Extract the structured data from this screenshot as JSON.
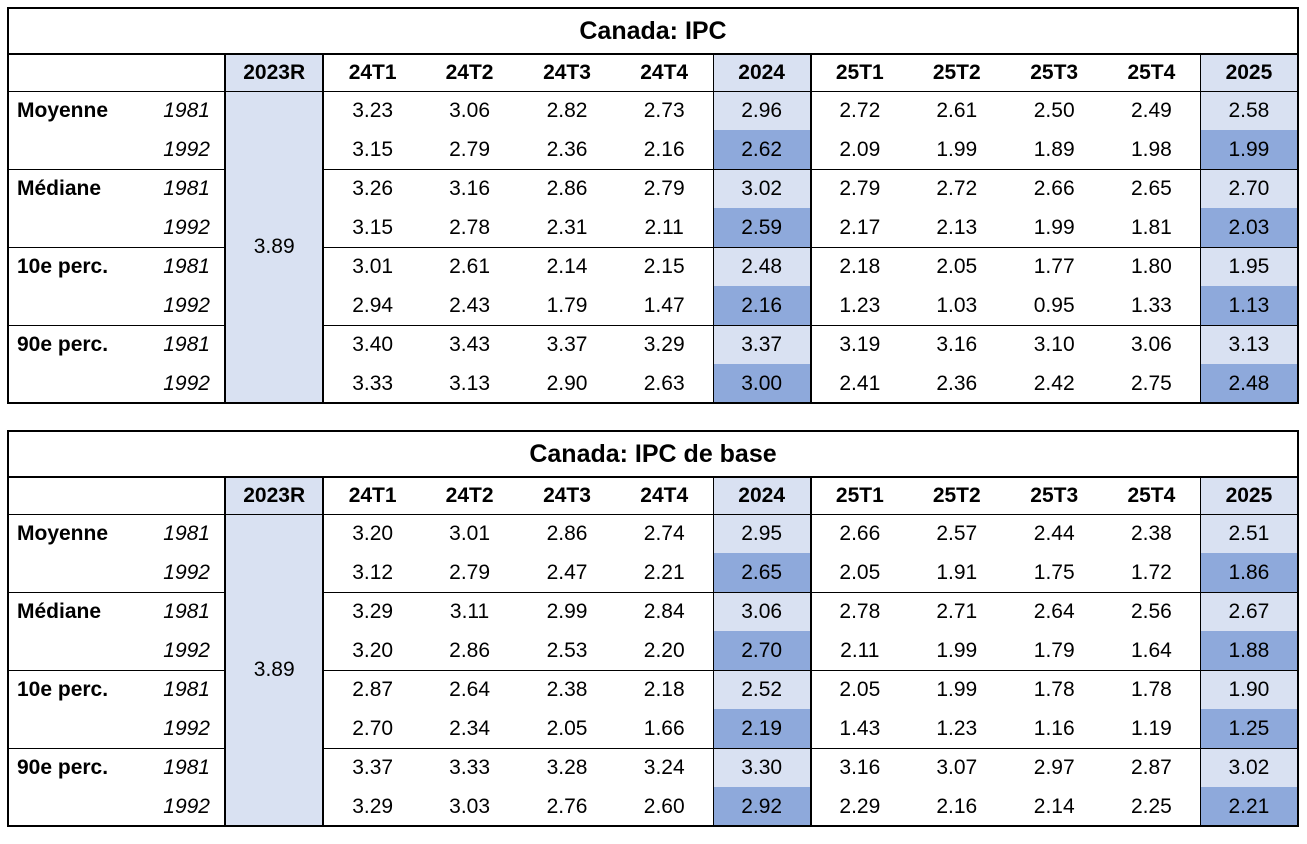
{
  "styles": {
    "highlight_light": "#D9E1F2",
    "highlight_dark": "#8EA9DB",
    "border_color": "#000000",
    "background": "#FFFFFF"
  },
  "chart_data": [
    {
      "type": "table",
      "title": "Canada: IPC",
      "corner_label": "",
      "prior_column": {
        "header": "2023R",
        "merged_value": "3.89"
      },
      "period_columns": [
        "24T1",
        "24T2",
        "24T3",
        "24T4",
        "2024",
        "25T1",
        "25T2",
        "25T3",
        "25T4",
        "2025"
      ],
      "annual_columns": [
        "2024",
        "2025"
      ],
      "row_groups": [
        "Moyenne",
        "Médiane",
        "10e perc.",
        "90e perc."
      ],
      "rows": [
        {
          "group": "Moyenne",
          "series": "1981",
          "values": [
            "3.23",
            "3.06",
            "2.82",
            "2.73",
            "2.96",
            "2.72",
            "2.61",
            "2.50",
            "2.49",
            "2.58"
          ]
        },
        {
          "group": "",
          "series": "1992",
          "values": [
            "3.15",
            "2.79",
            "2.36",
            "2.16",
            "2.62",
            "2.09",
            "1.99",
            "1.89",
            "1.98",
            "1.99"
          ]
        },
        {
          "group": "Médiane",
          "series": "1981",
          "values": [
            "3.26",
            "3.16",
            "2.86",
            "2.79",
            "3.02",
            "2.79",
            "2.72",
            "2.66",
            "2.65",
            "2.70"
          ]
        },
        {
          "group": "",
          "series": "1992",
          "values": [
            "3.15",
            "2.78",
            "2.31",
            "2.11",
            "2.59",
            "2.17",
            "2.13",
            "1.99",
            "1.81",
            "2.03"
          ]
        },
        {
          "group": "10e perc.",
          "series": "1981",
          "values": [
            "3.01",
            "2.61",
            "2.14",
            "2.15",
            "2.48",
            "2.18",
            "2.05",
            "1.77",
            "1.80",
            "1.95"
          ]
        },
        {
          "group": "",
          "series": "1992",
          "values": [
            "2.94",
            "2.43",
            "1.79",
            "1.47",
            "2.16",
            "1.23",
            "1.03",
            "0.95",
            "1.33",
            "1.13"
          ]
        },
        {
          "group": "90e perc.",
          "series": "1981",
          "values": [
            "3.40",
            "3.43",
            "3.37",
            "3.29",
            "3.37",
            "3.19",
            "3.16",
            "3.10",
            "3.06",
            "3.13"
          ]
        },
        {
          "group": "",
          "series": "1992",
          "values": [
            "3.33",
            "3.13",
            "2.90",
            "2.63",
            "3.00",
            "2.41",
            "2.36",
            "2.42",
            "2.75",
            "2.48"
          ]
        }
      ]
    },
    {
      "type": "table",
      "title": "Canada: IPC de base",
      "corner_label": "",
      "prior_column": {
        "header": "2023R",
        "merged_value": "3.89"
      },
      "period_columns": [
        "24T1",
        "24T2",
        "24T3",
        "24T4",
        "2024",
        "25T1",
        "25T2",
        "25T3",
        "25T4",
        "2025"
      ],
      "annual_columns": [
        "2024",
        "2025"
      ],
      "row_groups": [
        "Moyenne",
        "Médiane",
        "10e perc.",
        "90e perc."
      ],
      "rows": [
        {
          "group": "Moyenne",
          "series": "1981",
          "values": [
            "3.20",
            "3.01",
            "2.86",
            "2.74",
            "2.95",
            "2.66",
            "2.57",
            "2.44",
            "2.38",
            "2.51"
          ]
        },
        {
          "group": "",
          "series": "1992",
          "values": [
            "3.12",
            "2.79",
            "2.47",
            "2.21",
            "2.65",
            "2.05",
            "1.91",
            "1.75",
            "1.72",
            "1.86"
          ]
        },
        {
          "group": "Médiane",
          "series": "1981",
          "values": [
            "3.29",
            "3.11",
            "2.99",
            "2.84",
            "3.06",
            "2.78",
            "2.71",
            "2.64",
            "2.56",
            "2.67"
          ]
        },
        {
          "group": "",
          "series": "1992",
          "values": [
            "3.20",
            "2.86",
            "2.53",
            "2.20",
            "2.70",
            "2.11",
            "1.99",
            "1.79",
            "1.64",
            "1.88"
          ]
        },
        {
          "group": "10e perc.",
          "series": "1981",
          "values": [
            "2.87",
            "2.64",
            "2.38",
            "2.18",
            "2.52",
            "2.05",
            "1.99",
            "1.78",
            "1.78",
            "1.90"
          ]
        },
        {
          "group": "",
          "series": "1992",
          "values": [
            "2.70",
            "2.34",
            "2.05",
            "1.66",
            "2.19",
            "1.43",
            "1.23",
            "1.16",
            "1.19",
            "1.25"
          ]
        },
        {
          "group": "90e perc.",
          "series": "1981",
          "values": [
            "3.37",
            "3.33",
            "3.28",
            "3.24",
            "3.30",
            "3.16",
            "3.07",
            "2.97",
            "2.87",
            "3.02"
          ]
        },
        {
          "group": "",
          "series": "1992",
          "values": [
            "3.29",
            "3.03",
            "2.76",
            "2.60",
            "2.92",
            "2.29",
            "2.16",
            "2.14",
            "2.25",
            "2.21"
          ]
        }
      ]
    }
  ]
}
